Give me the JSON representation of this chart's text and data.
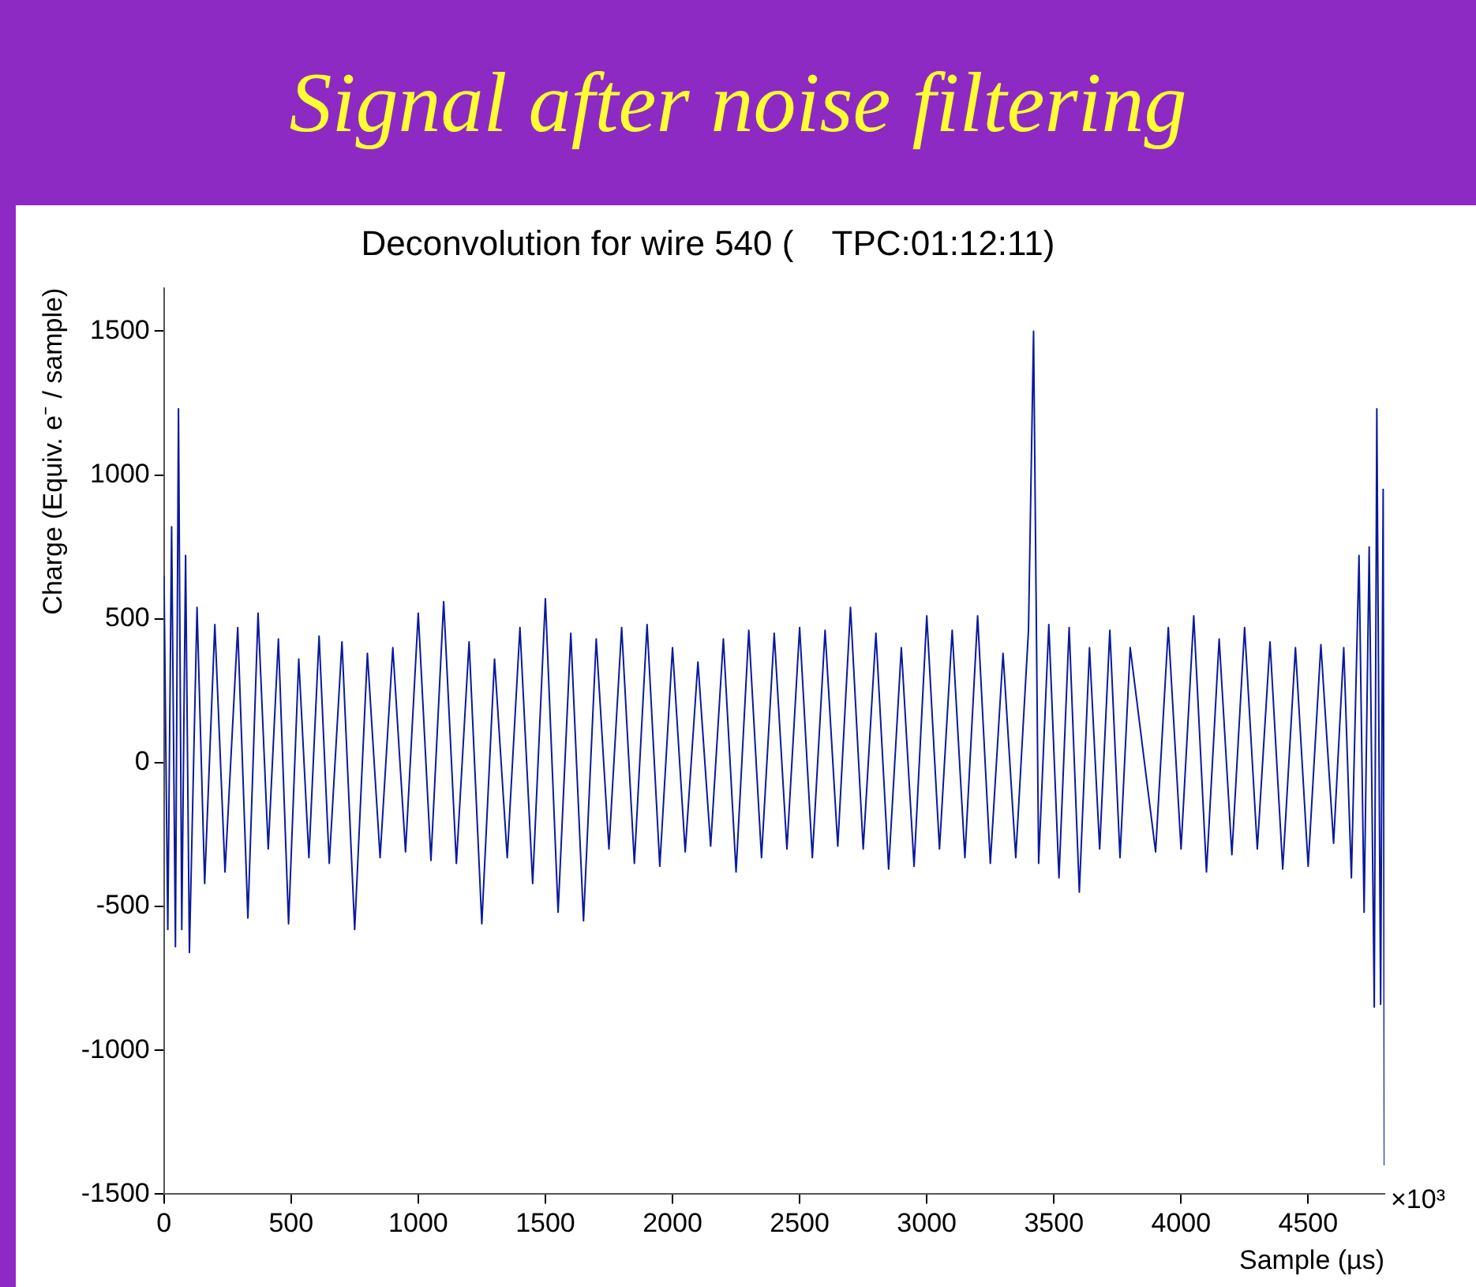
{
  "chart_data": {
    "type": "line",
    "title": "Signal after noise filtering",
    "subtitle": "Deconvolution for wire 540 (    TPC:01:12:11)",
    "xlabel": "Sample (µs)",
    "ylabel": "Charge (Equiv. e⁻ / sample)",
    "xlim": [
      0,
      4800
    ],
    "xticks": [
      0,
      500,
      1000,
      1500,
      2000,
      2500,
      3000,
      3500,
      4000,
      4500
    ],
    "ylim": [
      -1500,
      1650
    ],
    "yticks": [
      -1500,
      -1000,
      -500,
      0,
      500,
      1000,
      1500
    ],
    "grid": false,
    "legend": false,
    "marker": "none",
    "line_style": "solid",
    "annotations": [
      "×10³"
    ],
    "series": [
      {
        "color": "#0a1a9c",
        "x": [
          0,
          15,
          30,
          45,
          57,
          70,
          85,
          100,
          130,
          160,
          200,
          240,
          290,
          330,
          370,
          410,
          450,
          490,
          530,
          570,
          610,
          650,
          700,
          750,
          800,
          850,
          900,
          950,
          1000,
          1050,
          1100,
          1150,
          1200,
          1250,
          1300,
          1350,
          1400,
          1450,
          1500,
          1550,
          1600,
          1650,
          1700,
          1750,
          1800,
          1850,
          1900,
          1950,
          2000,
          2050,
          2100,
          2150,
          2200,
          2250,
          2300,
          2350,
          2400,
          2450,
          2500,
          2550,
          2600,
          2650,
          2700,
          2750,
          2800,
          2850,
          2900,
          2950,
          3000,
          3050,
          3100,
          3150,
          3200,
          3250,
          3300,
          3350,
          3400,
          3420,
          3440,
          3480,
          3520,
          3560,
          3600,
          3640,
          3680,
          3720,
          3760,
          3800,
          3900,
          3950,
          4000,
          4050,
          4100,
          4150,
          4200,
          4250,
          4300,
          4350,
          4400,
          4450,
          4500,
          4550,
          4600,
          4640,
          4670,
          4700,
          4720,
          4740,
          4760,
          4770,
          4785,
          4795,
          4800
        ],
        "values": [
          650,
          -580,
          820,
          -640,
          1230,
          -580,
          720,
          -660,
          540,
          -420,
          480,
          -380,
          470,
          -540,
          520,
          -300,
          430,
          -560,
          360,
          -330,
          440,
          -350,
          420,
          -580,
          380,
          -330,
          400,
          -310,
          520,
          -340,
          560,
          -350,
          420,
          -560,
          360,
          -330,
          470,
          -420,
          570,
          -520,
          450,
          -550,
          430,
          -300,
          470,
          -350,
          480,
          -360,
          400,
          -310,
          350,
          -290,
          430,
          -380,
          460,
          -330,
          450,
          -300,
          470,
          -330,
          460,
          -290,
          540,
          -300,
          450,
          -370,
          400,
          -360,
          510,
          -300,
          460,
          -330,
          510,
          -350,
          380,
          -330,
          460,
          1500,
          -350,
          480,
          -400,
          470,
          -450,
          400,
          -300,
          460,
          -330,
          400,
          -310,
          470,
          -300,
          510,
          -380,
          430,
          -320,
          470,
          -300,
          420,
          -370,
          400,
          -360,
          410,
          -280,
          400,
          -400,
          720,
          -520,
          750,
          -850,
          1230,
          -840,
          950,
          -1400
        ]
      }
    ]
  }
}
